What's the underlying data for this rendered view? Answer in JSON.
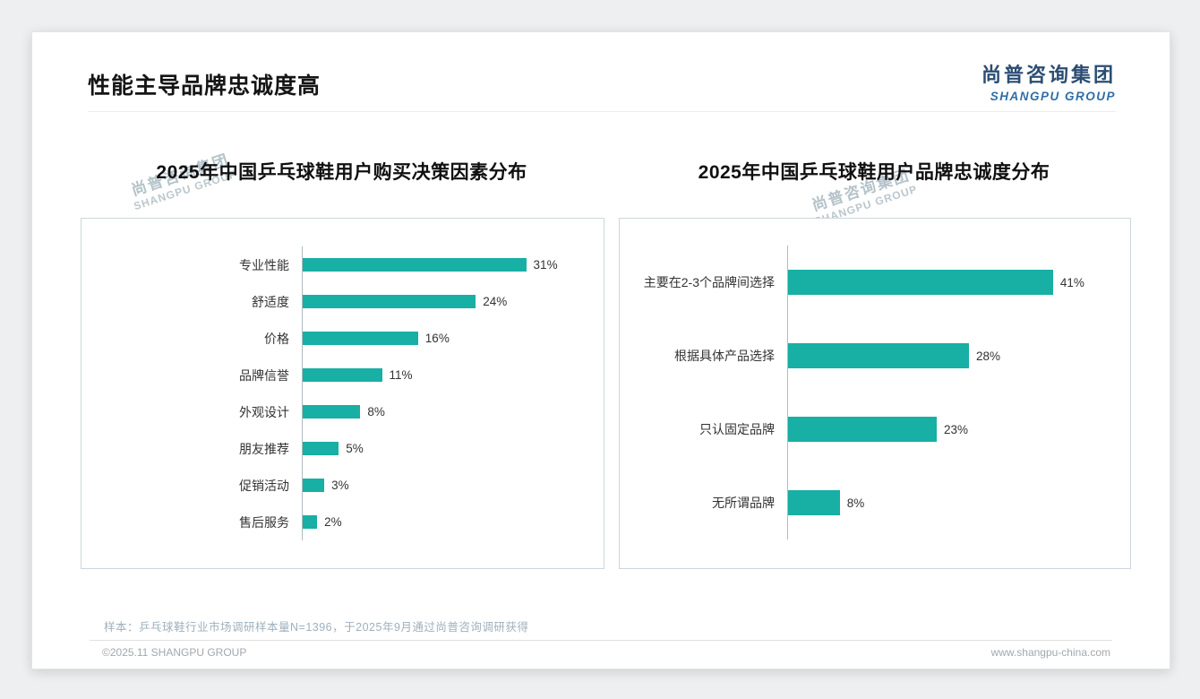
{
  "page": {
    "title": "性能主导品牌忠诚度高"
  },
  "logo": {
    "cn": "尚普咨询集团",
    "en": "SHANGPU GROUP"
  },
  "watermark": {
    "line1": "尚普咨询集团",
    "line2": "SHANGPU GROUP"
  },
  "colors": {
    "bar_teal": "#18AFA4",
    "logo_navy": "#2b4d72",
    "logo_blue": "#2f6ea6"
  },
  "chart_data": [
    {
      "type": "bar",
      "orientation": "horizontal",
      "title": "2025年中国乒乓球鞋用户购买决策因素分布",
      "categories": [
        "专业性能",
        "舒适度",
        "价格",
        "品牌信誉",
        "外观设计",
        "朋友推荐",
        "促销活动",
        "售后服务"
      ],
      "values": [
        31,
        24,
        16,
        11,
        8,
        5,
        3,
        2
      ],
      "unit": "%",
      "xlim": [
        0,
        40
      ],
      "bar_color": "#18AFA4",
      "legend": "none",
      "grid": "off"
    },
    {
      "type": "bar",
      "orientation": "horizontal",
      "title": "2025年中国乒乓球鞋用户品牌忠诚度分布",
      "categories": [
        "主要在2-3个品牌间选择",
        "根据具体产品选择",
        "只认固定品牌",
        "无所谓品牌"
      ],
      "values": [
        41,
        28,
        23,
        8
      ],
      "unit": "%",
      "xlim": [
        0,
        51
      ],
      "bar_color": "#18AFA4",
      "legend": "none",
      "grid": "off"
    }
  ],
  "footer": {
    "note": "样本：乒乓球鞋行业市场调研样本量N=1396，于2025年9月通过尚普咨询调研获得",
    "copyright": "©2025.11 SHANGPU GROUP",
    "website": "www.shangpu-china.com"
  }
}
